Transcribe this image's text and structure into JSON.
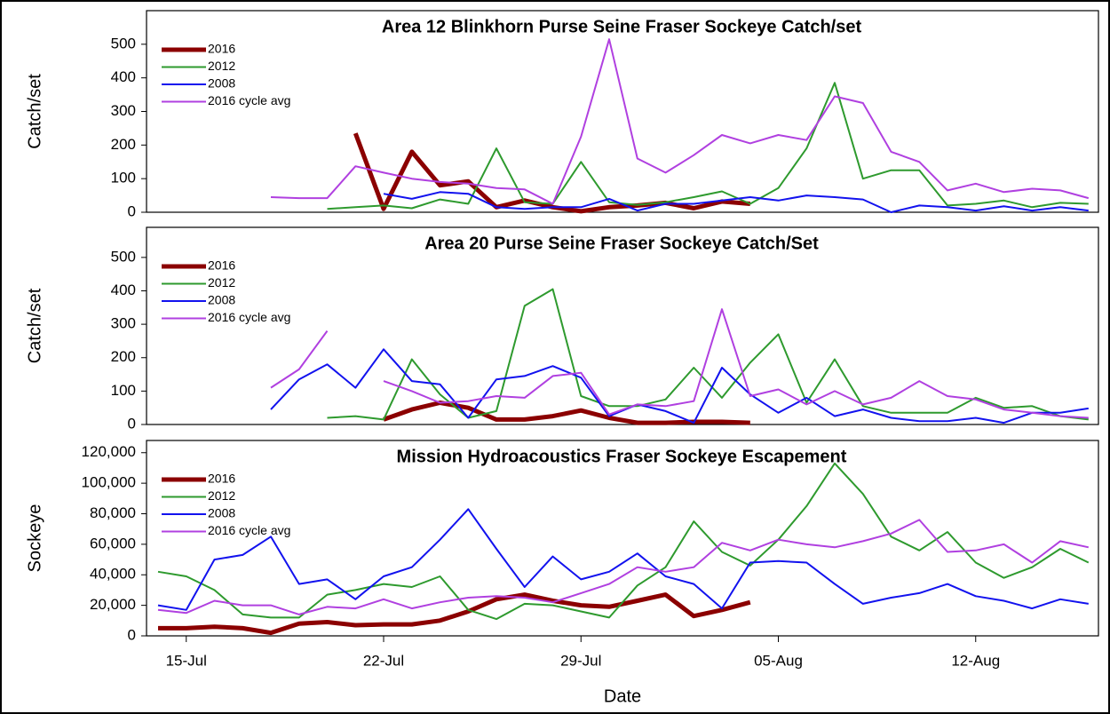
{
  "chart_data": [
    {
      "type": "line",
      "title": "Area 12 Blinkhorn Purse Seine Fraser Sockeye Catch/set",
      "ylabel": "Catch/set",
      "ylim": [
        0,
        600
      ],
      "yticks": [
        0,
        100,
        200,
        300,
        400,
        500
      ],
      "series": [
        {
          "name": "2016",
          "color": "#8b0000",
          "line_width": 5,
          "values": [
            null,
            null,
            null,
            null,
            null,
            null,
            null,
            235,
            10,
            180,
            80,
            92,
            15,
            35,
            15,
            3,
            15,
            20,
            28,
            12,
            32,
            25,
            null,
            null,
            null,
            null,
            null,
            null,
            null,
            null,
            null,
            null,
            null,
            null
          ]
        },
        {
          "name": "2012",
          "color": "#2e9a2e",
          "line_width": 2,
          "values": [
            null,
            null,
            null,
            null,
            null,
            null,
            10,
            15,
            20,
            12,
            38,
            25,
            190,
            30,
            25,
            150,
            30,
            22,
            30,
            45,
            62,
            25,
            72,
            190,
            385,
            100,
            125,
            125,
            20,
            25,
            35,
            15,
            28,
            25
          ]
        },
        {
          "name": "2008",
          "color": "#1212ee",
          "line_width": 2,
          "values": [
            null,
            null,
            null,
            null,
            null,
            null,
            null,
            null,
            55,
            40,
            60,
            55,
            15,
            10,
            15,
            15,
            40,
            5,
            25,
            25,
            35,
            45,
            35,
            50,
            45,
            38,
            0,
            20,
            15,
            5,
            18,
            5,
            15,
            5
          ]
        },
        {
          "name": "2016 cycle avg",
          "color": "#b040e0",
          "line_width": 2,
          "values": [
            null,
            null,
            null,
            null,
            45,
            42,
            42,
            137,
            118,
            100,
            90,
            85,
            72,
            68,
            25,
            225,
            515,
            160,
            118,
            170,
            230,
            205,
            230,
            215,
            345,
            325,
            180,
            150,
            65,
            85,
            60,
            70,
            65,
            42
          ]
        }
      ]
    },
    {
      "type": "line",
      "title": "Area 20 Purse Seine Fraser Sockeye Catch/Set",
      "ylabel": "Catch/set",
      "ylim": [
        0,
        590
      ],
      "yticks": [
        0,
        100,
        200,
        300,
        400,
        500
      ],
      "series": [
        {
          "name": "2016",
          "color": "#8b0000",
          "line_width": 5,
          "values": [
            null,
            null,
            null,
            null,
            null,
            null,
            null,
            null,
            15,
            45,
            65,
            50,
            15,
            15,
            25,
            42,
            20,
            5,
            5,
            8,
            8,
            5,
            null,
            null,
            null,
            null,
            null,
            null,
            null,
            null,
            null,
            null,
            null,
            null
          ]
        },
        {
          "name": "2012",
          "color": "#2e9a2e",
          "line_width": 2,
          "values": [
            null,
            null,
            null,
            null,
            null,
            null,
            20,
            25,
            15,
            195,
            90,
            20,
            40,
            355,
            405,
            85,
            55,
            55,
            75,
            170,
            80,
            185,
            270,
            65,
            195,
            55,
            35,
            35,
            35,
            80,
            50,
            55,
            25,
            15
          ]
        },
        {
          "name": "2008",
          "color": "#1212ee",
          "line_width": 2,
          "values": [
            null,
            null,
            null,
            null,
            45,
            135,
            180,
            110,
            225,
            130,
            120,
            20,
            135,
            145,
            175,
            140,
            25,
            60,
            40,
            5,
            170,
            90,
            35,
            80,
            25,
            45,
            20,
            10,
            10,
            20,
            5,
            35,
            35,
            48
          ]
        },
        {
          "name": "2016 cycle avg",
          "color": "#b040e0",
          "line_width": 2,
          "values": [
            null,
            null,
            null,
            null,
            110,
            165,
            280,
            null,
            130,
            100,
            65,
            70,
            85,
            80,
            145,
            155,
            30,
            60,
            55,
            70,
            345,
            85,
            105,
            60,
            100,
            60,
            80,
            130,
            85,
            75,
            45,
            35,
            25,
            20
          ]
        }
      ]
    },
    {
      "type": "line",
      "title": "Mission Hydroacoustics Fraser Sockeye Escapement",
      "ylabel": "Sockeye",
      "xlabel": "Date",
      "categories": [
        null,
        "15-Jul",
        null,
        null,
        null,
        null,
        null,
        null,
        "22-Jul",
        null,
        null,
        null,
        null,
        null,
        null,
        "29-Jul",
        null,
        null,
        null,
        null,
        null,
        null,
        "05-Aug",
        null,
        null,
        null,
        null,
        null,
        null,
        "12-Aug",
        null,
        null,
        null,
        null
      ],
      "ylim": [
        0,
        128000
      ],
      "yticks": [
        0,
        {
          "value": 20000,
          "label": "20,000"
        },
        {
          "value": 40000,
          "label": "40,000"
        },
        {
          "value": 60000,
          "label": "60,000"
        },
        {
          "value": 80000,
          "label": "80,000"
        },
        {
          "value": 100000,
          "label": "100,000"
        },
        {
          "value": 120000,
          "label": "120,000"
        }
      ],
      "series": [
        {
          "name": "2016",
          "color": "#8b0000",
          "line_width": 5,
          "values": [
            5000,
            5000,
            6000,
            5000,
            2000,
            8000,
            9000,
            7000,
            7500,
            7500,
            10000,
            16000,
            24000,
            27000,
            23000,
            20000,
            19000,
            23000,
            27000,
            13000,
            17000,
            22000,
            null,
            null,
            null,
            null,
            null,
            null,
            null,
            null,
            null,
            null,
            null,
            null
          ]
        },
        {
          "name": "2012",
          "color": "#2e9a2e",
          "line_width": 2,
          "values": [
            42000,
            39000,
            30000,
            14000,
            12000,
            12000,
            27000,
            30000,
            34000,
            32000,
            39000,
            17000,
            11000,
            21000,
            20000,
            16000,
            12000,
            33000,
            45000,
            75000,
            55000,
            46000,
            63000,
            85000,
            113000,
            93000,
            65000,
            56000,
            68000,
            48000,
            38000,
            45000,
            57000,
            48000
          ]
        },
        {
          "name": "2008",
          "color": "#1212ee",
          "line_width": 2,
          "values": [
            20000,
            17000,
            50000,
            53000,
            65000,
            34000,
            37000,
            24000,
            39000,
            45000,
            63000,
            83000,
            57000,
            32000,
            52000,
            37000,
            42000,
            54000,
            39000,
            34000,
            18000,
            48000,
            49000,
            48000,
            34000,
            21000,
            25000,
            28000,
            34000,
            26000,
            23000,
            18000,
            24000,
            21000
          ]
        },
        {
          "name": "2016 cycle avg",
          "color": "#b040e0",
          "line_width": 2,
          "values": [
            17000,
            15000,
            23000,
            20000,
            20000,
            14000,
            19000,
            18000,
            24000,
            18000,
            22000,
            25000,
            26000,
            25000,
            22000,
            28000,
            34000,
            45000,
            42000,
            45000,
            61000,
            56000,
            63000,
            60000,
            58000,
            62000,
            67000,
            76000,
            55000,
            56000,
            60000,
            48000,
            62000,
            58000
          ]
        }
      ]
    }
  ]
}
